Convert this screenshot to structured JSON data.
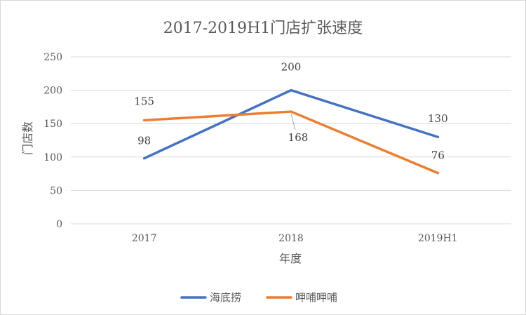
{
  "chart_data": {
    "type": "line",
    "title": "2017-2019H1门店扩张速度",
    "xlabel": "年度",
    "ylabel": "门店数",
    "categories": [
      "2017",
      "2018",
      "2019H1"
    ],
    "ylim": [
      0,
      250
    ],
    "yticks": [
      "0",
      "50",
      "100",
      "150",
      "200",
      "250"
    ],
    "grid": true,
    "legend_position": "bottom",
    "series": [
      {
        "name": "海底捞",
        "values": [
          98,
          200,
          130
        ],
        "color": "#4472c4"
      },
      {
        "name": "呷哺呷哺",
        "values": [
          155,
          168,
          76
        ],
        "color": "#ed7d31"
      }
    ]
  }
}
